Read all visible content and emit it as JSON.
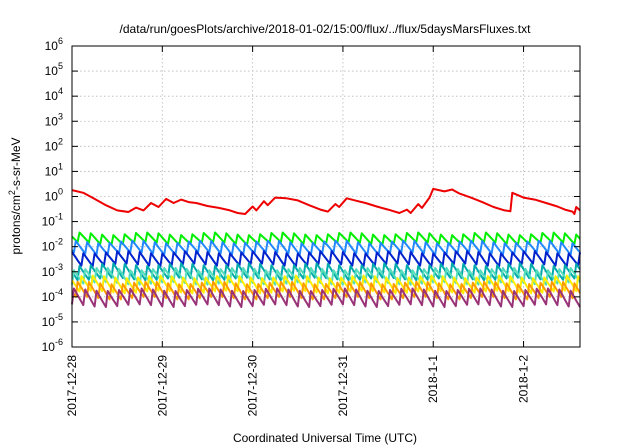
{
  "chart_data": {
    "type": "line",
    "title": "/data/run/goesPlots/archive/2018-01-02/15:00/flux/../flux/5daysMarsFluxes.txt",
    "xlabel": "Coordinated Universal Time (UTC)",
    "ylabel": "protons/cm2-s-sr-MeV",
    "ylabel_parts": {
      "base": "protons/cm",
      "sup": "2",
      "rest": "-s-sr-MeV"
    },
    "yscale": "log",
    "ylim": [
      1e-06,
      1000000.0
    ],
    "y_ticks": [
      {
        "exp": -6,
        "base": "10",
        "sup": "-6"
      },
      {
        "exp": -5,
        "base": "10",
        "sup": "-5"
      },
      {
        "exp": -4,
        "base": "10",
        "sup": "-4"
      },
      {
        "exp": -3,
        "base": "10",
        "sup": "-3"
      },
      {
        "exp": -2,
        "base": "10",
        "sup": "-2"
      },
      {
        "exp": -1,
        "base": "10",
        "sup": "-1"
      },
      {
        "exp": 0,
        "base": "10",
        "sup": "0"
      },
      {
        "exp": 1,
        "base": "10",
        "sup": "1"
      },
      {
        "exp": 2,
        "base": "10",
        "sup": "2"
      },
      {
        "exp": 3,
        "base": "10",
        "sup": "3"
      },
      {
        "exp": 4,
        "base": "10",
        "sup": "4"
      },
      {
        "exp": 5,
        "base": "10",
        "sup": "5"
      },
      {
        "exp": 6,
        "base": "10",
        "sup": "6"
      }
    ],
    "xlim": [
      "2017-12-28T00:00",
      "2018-01-02T15:00"
    ],
    "x_ticks": [
      {
        "label": "2017-12-28",
        "t": "2017-12-28T00:00"
      },
      {
        "label": "2017-12-29",
        "t": "2017-12-29T00:00"
      },
      {
        "label": "2017-12-30",
        "t": "2017-12-30T00:00"
      },
      {
        "label": "2017-12-31",
        "t": "2017-12-31T00:00"
      },
      {
        "label": "2018-1-1",
        "t": "2018-01-01T00:00"
      },
      {
        "label": "2018-1-2",
        "t": "2018-01-02T00:00"
      }
    ],
    "grid": true,
    "series": [
      {
        "color": "#ee0000",
        "points": [
          [
            "2017-12-28T00:00",
            1.8
          ],
          [
            "2017-12-28T03:00",
            1.4
          ],
          [
            "2017-12-28T06:00",
            0.8
          ],
          [
            "2017-12-28T09:00",
            0.45
          ],
          [
            "2017-12-28T12:00",
            0.28
          ],
          [
            "2017-12-28T15:00",
            0.24
          ],
          [
            "2017-12-28T17:00",
            0.36
          ],
          [
            "2017-12-28T19:00",
            0.28
          ],
          [
            "2017-12-28T21:00",
            0.55
          ],
          [
            "2017-12-28T23:00",
            0.38
          ],
          [
            "2017-12-29T01:00",
            0.8
          ],
          [
            "2017-12-29T03:00",
            0.55
          ],
          [
            "2017-12-29T05:00",
            0.75
          ],
          [
            "2017-12-29T07:00",
            0.6
          ],
          [
            "2017-12-29T09:00",
            0.55
          ],
          [
            "2017-12-29T12:00",
            0.42
          ],
          [
            "2017-12-29T15:00",
            0.35
          ],
          [
            "2017-12-29T18:00",
            0.28
          ],
          [
            "2017-12-29T20:00",
            0.22
          ],
          [
            "2017-12-29T22:00",
            0.2
          ],
          [
            "2017-12-30T00:00",
            0.4
          ],
          [
            "2017-12-30T01:00",
            0.28
          ],
          [
            "2017-12-30T03:00",
            0.65
          ],
          [
            "2017-12-30T04:00",
            0.45
          ],
          [
            "2017-12-30T06:00",
            0.9
          ],
          [
            "2017-12-30T09:00",
            0.85
          ],
          [
            "2017-12-30T12:00",
            0.7
          ],
          [
            "2017-12-30T15:00",
            0.45
          ],
          [
            "2017-12-30T18:00",
            0.3
          ],
          [
            "2017-12-30T20:00",
            0.25
          ],
          [
            "2017-12-30T22:00",
            0.5
          ],
          [
            "2017-12-30T23:00",
            0.38
          ],
          [
            "2017-12-31T01:00",
            0.85
          ],
          [
            "2017-12-31T04:00",
            0.65
          ],
          [
            "2017-12-31T06:00",
            0.55
          ],
          [
            "2017-12-31T09:00",
            0.4
          ],
          [
            "2017-12-31T12:00",
            0.3
          ],
          [
            "2017-12-31T15:00",
            0.22
          ],
          [
            "2017-12-31T17:00",
            0.3
          ],
          [
            "2017-12-31T18:00",
            0.22
          ],
          [
            "2017-12-31T20:00",
            0.5
          ],
          [
            "2017-12-31T21:00",
            0.35
          ],
          [
            "2017-12-31T23:00",
            0.9
          ],
          [
            "2018-01-01T00:00",
            2.0
          ],
          [
            "2018-01-01T03:00",
            1.6
          ],
          [
            "2018-01-01T05:00",
            1.9
          ],
          [
            "2018-01-01T07:00",
            1.3
          ],
          [
            "2018-01-01T10:00",
            0.9
          ],
          [
            "2018-01-01T13:00",
            0.6
          ],
          [
            "2018-01-01T16:00",
            0.38
          ],
          [
            "2018-01-01T19:00",
            0.28
          ],
          [
            "2018-01-01T20:30",
            0.26
          ],
          [
            "2018-01-01T21:00",
            1.4
          ],
          [
            "2018-01-02T00:00",
            0.9
          ],
          [
            "2018-01-02T03:00",
            0.75
          ],
          [
            "2018-01-02T06:00",
            0.55
          ],
          [
            "2018-01-02T09:00",
            0.4
          ],
          [
            "2018-01-02T11:00",
            0.3
          ],
          [
            "2018-01-02T13:00",
            0.25
          ],
          [
            "2018-01-02T13:30",
            0.2
          ],
          [
            "2018-01-02T14:00",
            0.38
          ],
          [
            "2018-01-02T15:00",
            0.28
          ]
        ]
      },
      {
        "color": "#00ee00",
        "base": 0.02,
        "amp": 1.7
      },
      {
        "color": "#2288ff",
        "base": 0.009,
        "amp": 1.9
      },
      {
        "color": "#0022cc",
        "base": 0.0035,
        "amp": 2.0
      },
      {
        "color": "#00aaaa",
        "base": 0.0011,
        "amp": 2.2
      },
      {
        "color": "#55ddbb",
        "base": 0.0006,
        "amp": 2.2
      },
      {
        "color": "#ffee00",
        "base": 0.0003,
        "amp": 2.3
      },
      {
        "color": "#ff9900",
        "base": 0.00018,
        "amp": 2.3
      },
      {
        "color": "#993377",
        "base": 0.0001,
        "amp": 2.4
      }
    ]
  }
}
